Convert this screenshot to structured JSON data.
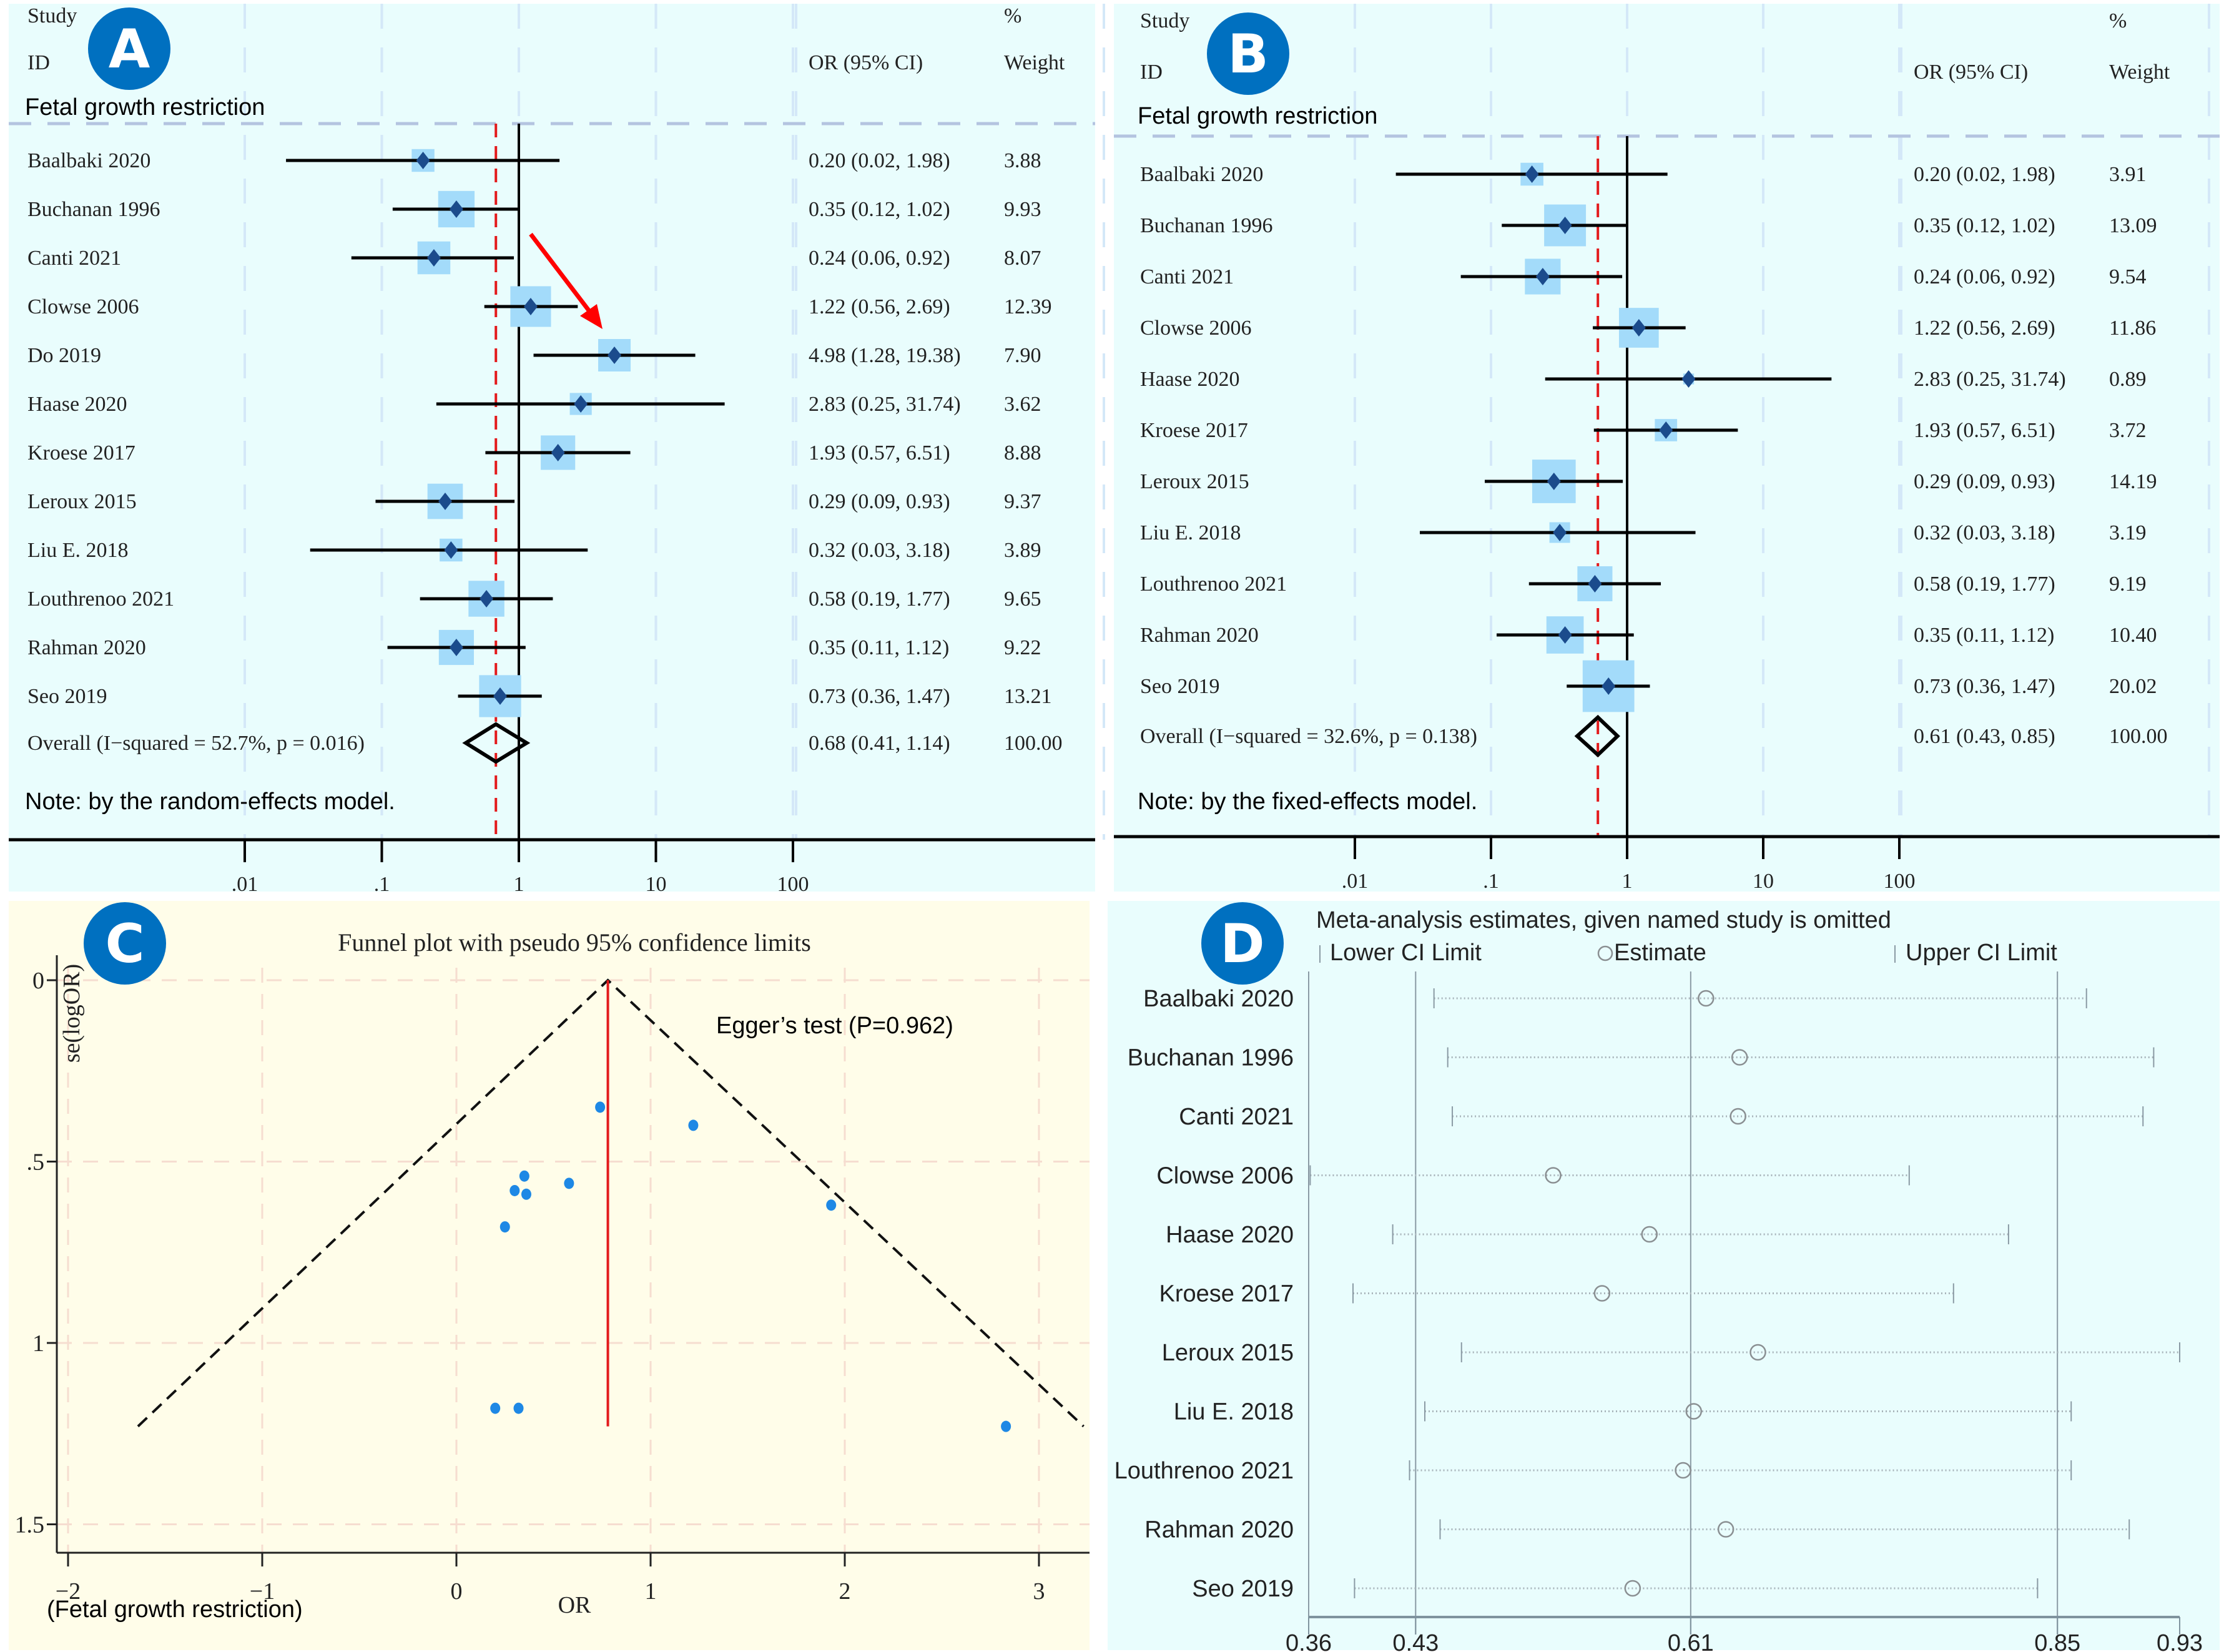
{
  "colors": {
    "badge": "#0070C0",
    "square": "#A3DBFA",
    "diamond_marker": "#1B4B8C",
    "overall_line": "#E31A1C",
    "funnel_point": "#1E88E5",
    "panel_bg_cyan": "#E9FDFD",
    "panel_bg_cream": "#FFFDE9"
  },
  "chart_data": [
    {
      "panel": "A",
      "type": "forest",
      "badge": "A",
      "header": {
        "study": "Study",
        "id": "ID",
        "pct": "%",
        "or_ci": "OR (95% CI)",
        "weight": "Weight"
      },
      "subgroup": "Fetal growth restriction",
      "x_scale": "log",
      "x_ticks": [
        0.01,
        0.1,
        1,
        10,
        100
      ],
      "x_tick_labels": [
        ".01",
        ".1",
        "1",
        "10",
        "100"
      ],
      "null_value": 1,
      "studies": [
        {
          "name": "Baalbaki 2020",
          "or": 0.2,
          "lo": 0.02,
          "hi": 1.98,
          "ci_text": "0.20 (0.02, 1.98)",
          "weight": "3.88"
        },
        {
          "name": "Buchanan 1996",
          "or": 0.35,
          "lo": 0.12,
          "hi": 1.02,
          "ci_text": "0.35 (0.12, 1.02)",
          "weight": "9.93"
        },
        {
          "name": "Canti 2021",
          "or": 0.24,
          "lo": 0.06,
          "hi": 0.92,
          "ci_text": "0.24 (0.06, 0.92)",
          "weight": "8.07"
        },
        {
          "name": "Clowse 2006",
          "or": 1.22,
          "lo": 0.56,
          "hi": 2.69,
          "ci_text": "1.22 (0.56, 2.69)",
          "weight": "12.39"
        },
        {
          "name": "Do 2019",
          "or": 4.98,
          "lo": 1.28,
          "hi": 19.38,
          "ci_text": "4.98 (1.28, 19.38)",
          "weight": "7.90"
        },
        {
          "name": "Haase 2020",
          "or": 2.83,
          "lo": 0.25,
          "hi": 31.74,
          "ci_text": "2.83 (0.25, 31.74)",
          "weight": "3.62"
        },
        {
          "name": "Kroese 2017",
          "or": 1.93,
          "lo": 0.57,
          "hi": 6.51,
          "ci_text": "1.93 (0.57, 6.51)",
          "weight": "8.88"
        },
        {
          "name": "Leroux 2015",
          "or": 0.29,
          "lo": 0.09,
          "hi": 0.93,
          "ci_text": "0.29 (0.09, 0.93)",
          "weight": "9.37"
        },
        {
          "name": "Liu E. 2018",
          "or": 0.32,
          "lo": 0.03,
          "hi": 3.18,
          "ci_text": "0.32 (0.03, 3.18)",
          "weight": "3.89"
        },
        {
          "name": "Louthrenoo 2021",
          "or": 0.58,
          "lo": 0.19,
          "hi": 1.77,
          "ci_text": "0.58 (0.19, 1.77)",
          "weight": "9.65"
        },
        {
          "name": "Rahman 2020",
          "or": 0.35,
          "lo": 0.11,
          "hi": 1.12,
          "ci_text": "0.35 (0.11, 1.12)",
          "weight": "9.22"
        },
        {
          "name": "Seo 2019",
          "or": 0.73,
          "lo": 0.36,
          "hi": 1.47,
          "ci_text": "0.73 (0.36, 1.47)",
          "weight": "13.21"
        }
      ],
      "overall": {
        "label": "Overall  (I−squared = 52.7%, p = 0.016)",
        "or": 0.68,
        "lo": 0.41,
        "hi": 1.14,
        "ci_text": "0.68 (0.41, 1.14)",
        "weight": "100.00"
      },
      "note": "Note: by the random-effects model.",
      "annotation": "red arrow pointing to Do 2019"
    },
    {
      "panel": "B",
      "type": "forest",
      "badge": "B",
      "header": {
        "study": "Study",
        "id": "ID",
        "pct": "%",
        "or_ci": "OR (95% CI)",
        "weight": "Weight"
      },
      "subgroup": "Fetal growth restriction",
      "x_scale": "log",
      "x_ticks": [
        0.01,
        0.1,
        1,
        10,
        100
      ],
      "x_tick_labels": [
        ".01",
        ".1",
        "1",
        "10",
        "100"
      ],
      "null_value": 1,
      "studies": [
        {
          "name": "Baalbaki 2020",
          "or": 0.2,
          "lo": 0.02,
          "hi": 1.98,
          "ci_text": "0.20 (0.02, 1.98)",
          "weight": "3.91"
        },
        {
          "name": "Buchanan 1996",
          "or": 0.35,
          "lo": 0.12,
          "hi": 1.02,
          "ci_text": "0.35 (0.12, 1.02)",
          "weight": "13.09"
        },
        {
          "name": "Canti 2021",
          "or": 0.24,
          "lo": 0.06,
          "hi": 0.92,
          "ci_text": "0.24 (0.06, 0.92)",
          "weight": "9.54"
        },
        {
          "name": "Clowse 2006",
          "or": 1.22,
          "lo": 0.56,
          "hi": 2.69,
          "ci_text": "1.22 (0.56, 2.69)",
          "weight": "11.86"
        },
        {
          "name": "Haase 2020",
          "or": 2.83,
          "lo": 0.25,
          "hi": 31.74,
          "ci_text": "2.83 (0.25, 31.74)",
          "weight": "0.89"
        },
        {
          "name": "Kroese 2017",
          "or": 1.93,
          "lo": 0.57,
          "hi": 6.51,
          "ci_text": "1.93 (0.57, 6.51)",
          "weight": "3.72"
        },
        {
          "name": "Leroux 2015",
          "or": 0.29,
          "lo": 0.09,
          "hi": 0.93,
          "ci_text": "0.29 (0.09, 0.93)",
          "weight": "14.19"
        },
        {
          "name": "Liu E. 2018",
          "or": 0.32,
          "lo": 0.03,
          "hi": 3.18,
          "ci_text": "0.32 (0.03, 3.18)",
          "weight": "3.19"
        },
        {
          "name": "Louthrenoo 2021",
          "or": 0.58,
          "lo": 0.19,
          "hi": 1.77,
          "ci_text": "0.58 (0.19, 1.77)",
          "weight": "9.19"
        },
        {
          "name": "Rahman 2020",
          "or": 0.35,
          "lo": 0.11,
          "hi": 1.12,
          "ci_text": "0.35 (0.11, 1.12)",
          "weight": "10.40"
        },
        {
          "name": "Seo 2019",
          "or": 0.73,
          "lo": 0.36,
          "hi": 1.47,
          "ci_text": "0.73 (0.36, 1.47)",
          "weight": "20.02"
        }
      ],
      "overall": {
        "label": "Overall  (I−squared = 32.6%, p = 0.138)",
        "or": 0.61,
        "lo": 0.43,
        "hi": 0.85,
        "ci_text": "0.61 (0.43, 0.85)",
        "weight": "100.00"
      },
      "note": "Note: by the fixed-effects model."
    },
    {
      "panel": "C",
      "type": "scatter",
      "badge": "C",
      "title": "Funnel plot with pseudo 95% confidence limits",
      "xlabel": "OR",
      "ylabel": "se(logOR)",
      "xlim": [
        -2.1,
        3.25
      ],
      "ylim": [
        0,
        1.5
      ],
      "y_reversed": true,
      "x_ticks": [
        -2,
        -1,
        0,
        1,
        2,
        3
      ],
      "x_tick_labels": [
        "−2",
        "−1",
        "0",
        "1",
        "2",
        "3"
      ],
      "y_ticks": [
        0,
        0.5,
        1,
        1.5
      ],
      "y_tick_labels": [
        "0",
        ".5",
        "1",
        "1.5"
      ],
      "grid": true,
      "annotation": "Egger’s test (P=0.962)",
      "caption": "(Fetal growth restriction)",
      "pooled_estimate": 0.78,
      "funnel_limits": {
        "apex": [
          0.78,
          0
        ],
        "left": [
          -1.64,
          1.23
        ],
        "right": [
          3.23,
          1.23
        ]
      },
      "points": [
        {
          "x": 0.74,
          "y": 0.35
        },
        {
          "x": 1.22,
          "y": 0.4
        },
        {
          "x": 0.35,
          "y": 0.54
        },
        {
          "x": 0.58,
          "y": 0.56
        },
        {
          "x": 0.3,
          "y": 0.58
        },
        {
          "x": 0.36,
          "y": 0.59
        },
        {
          "x": 0.25,
          "y": 0.68
        },
        {
          "x": 1.93,
          "y": 0.62
        },
        {
          "x": 0.2,
          "y": 1.18
        },
        {
          "x": 0.32,
          "y": 1.18
        },
        {
          "x": 2.83,
          "y": 1.23
        }
      ]
    },
    {
      "panel": "D",
      "type": "sensitivity",
      "badge": "D",
      "title": "Meta-analysis estimates, given named study is omitted",
      "legend": [
        "Lower CI Limit",
        "Estimate",
        "Upper CI Limit"
      ],
      "legend_placement": "top",
      "xlim": [
        0.36,
        0.93
      ],
      "x_ticks": [
        0.36,
        0.43,
        0.61,
        0.85,
        0.93
      ],
      "x_tick_labels": [
        "0.36",
        "0.43",
        "0.61",
        "0.85",
        "0.93"
      ],
      "ref_lines": [
        0.43,
        0.61,
        0.85
      ],
      "studies": [
        {
          "name": "Baalbaki 2020",
          "lo": 0.442,
          "est": 0.62,
          "hi": 0.869
        },
        {
          "name": "Buchanan 1996",
          "lo": 0.451,
          "est": 0.642,
          "hi": 0.913
        },
        {
          "name": "Canti 2021",
          "lo": 0.454,
          "est": 0.641,
          "hi": 0.906
        },
        {
          "name": "Clowse 2006",
          "lo": 0.361,
          "est": 0.52,
          "hi": 0.753
        },
        {
          "name": "Haase 2020",
          "lo": 0.415,
          "est": 0.583,
          "hi": 0.818
        },
        {
          "name": "Kroese 2017",
          "lo": 0.389,
          "est": 0.552,
          "hi": 0.782
        },
        {
          "name": "Leroux 2015",
          "lo": 0.46,
          "est": 0.654,
          "hi": 0.93
        },
        {
          "name": "Liu E. 2018",
          "lo": 0.436,
          "est": 0.612,
          "hi": 0.859
        },
        {
          "name": "Louthrenoo 2021",
          "lo": 0.426,
          "est": 0.605,
          "hi": 0.859
        },
        {
          "name": "Rahman 2020",
          "lo": 0.446,
          "est": 0.633,
          "hi": 0.897
        },
        {
          "name": "Seo 2019",
          "lo": 0.39,
          "est": 0.572,
          "hi": 0.837
        }
      ]
    }
  ]
}
